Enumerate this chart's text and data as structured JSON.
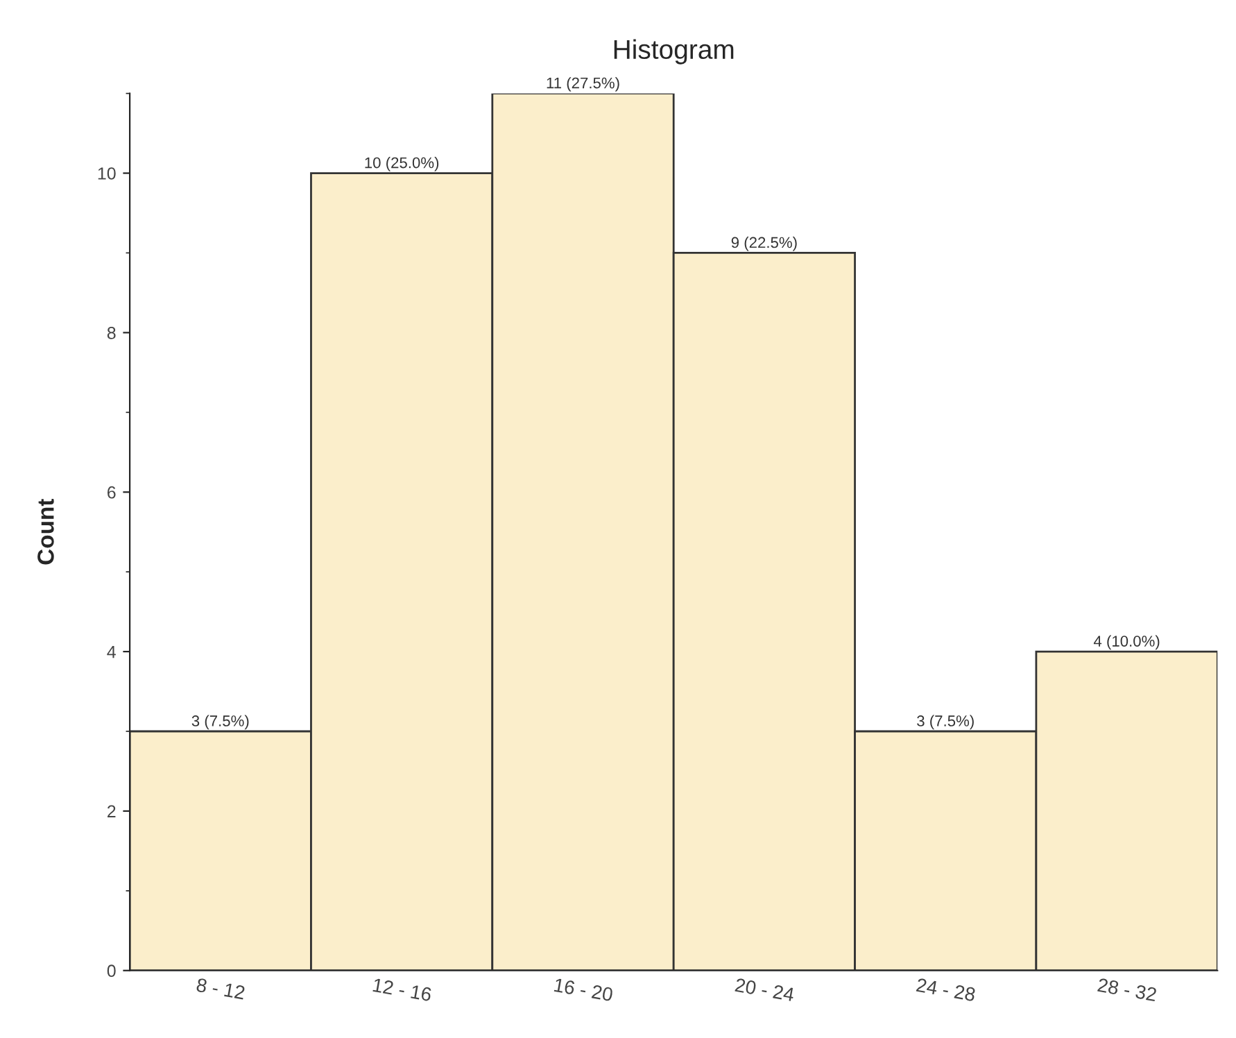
{
  "chart_data": {
    "type": "bar",
    "title": "Histogram",
    "ylabel": "Count",
    "categories": [
      "8 - 12",
      "12 - 16",
      "16 - 20",
      "20 - 24",
      "24 - 28",
      "28 - 32"
    ],
    "values": [
      3,
      10,
      11,
      9,
      3,
      4
    ],
    "value_labels": [
      "3 (7.5%)",
      "10 (25.0%)",
      "11 (27.5%)",
      "9 (22.5%)",
      "3 (7.5%)",
      "4 (10.0%)"
    ],
    "color": "#fbeecb",
    "ylim": [
      0,
      11
    ],
    "yticks": [
      0,
      2,
      4,
      6,
      8,
      10
    ],
    "grid": false
  }
}
